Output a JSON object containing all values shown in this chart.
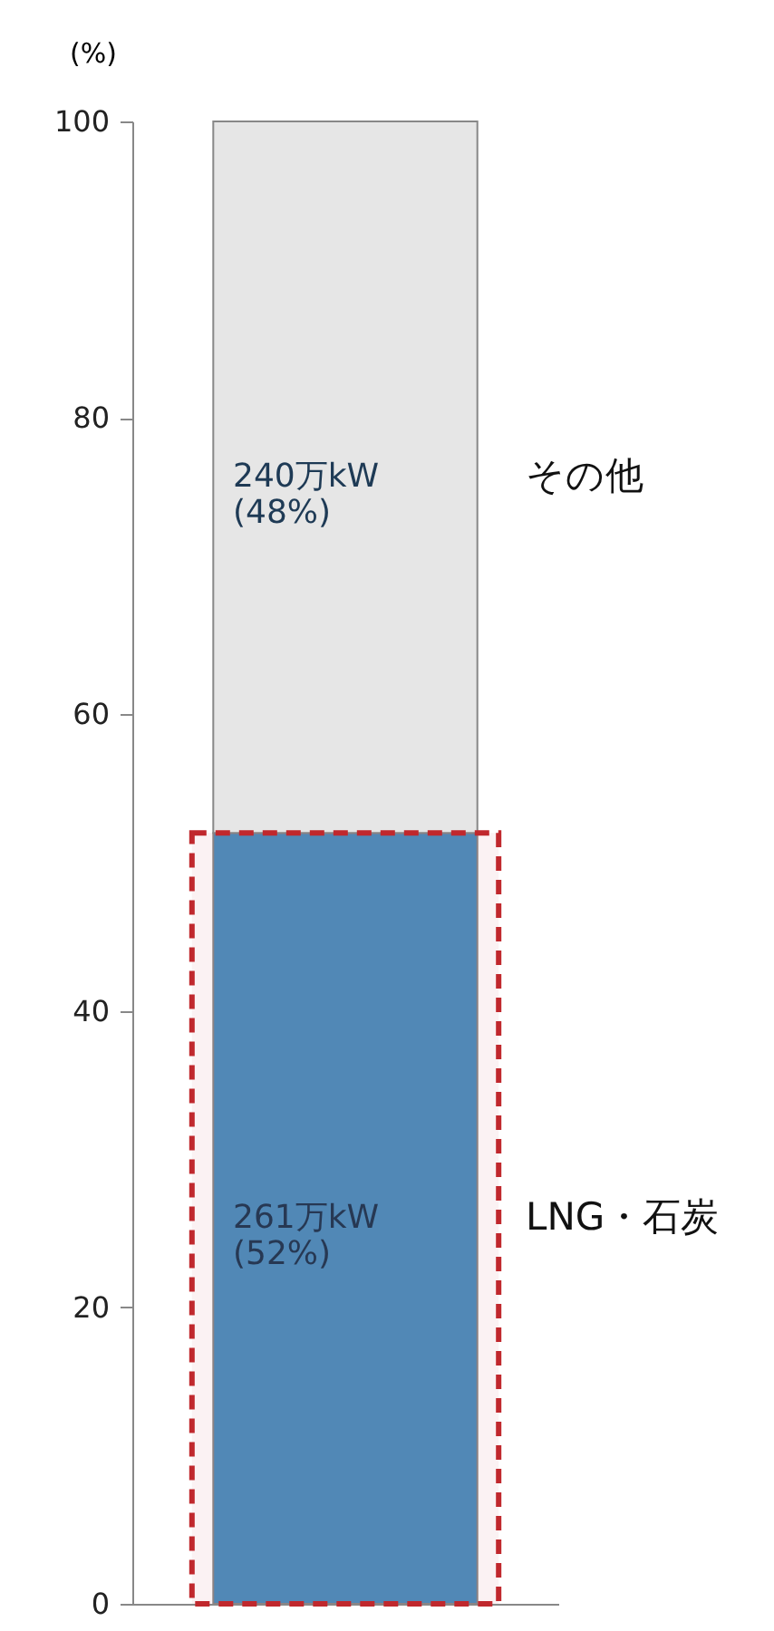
{
  "chart_data": {
    "type": "bar",
    "stacked": true,
    "categories": [
      null
    ],
    "ylabel": "(%)",
    "ylim": [
      0,
      100
    ],
    "yticks": [
      0,
      20,
      40,
      60,
      80,
      100
    ],
    "grid": false,
    "series": [
      {
        "name": "LNG・石炭",
        "color": "#4b8fbf",
        "values": [
          52
        ],
        "value_labels": [
          "261万kW\n(52%)"
        ]
      },
      {
        "name": "その他",
        "color": "#e6e6e6",
        "values": [
          48
        ],
        "value_labels": [
          "240万kW\n(48%)"
        ]
      }
    ],
    "bands": [
      {
        "axis": "y",
        "from": 0,
        "to": 52,
        "color": "#c0282d"
      }
    ]
  }
}
